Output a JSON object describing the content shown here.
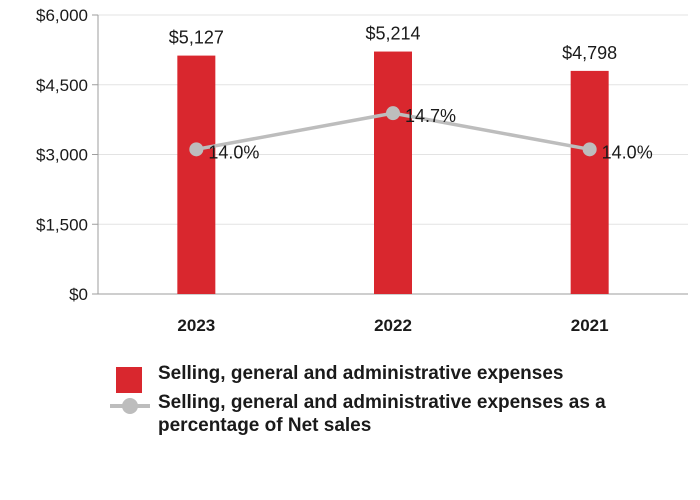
{
  "chart_data": {
    "type": "bar",
    "categories": [
      "2023",
      "2022",
      "2021"
    ],
    "series": [
      {
        "name": "Selling, general and administrative expenses",
        "type": "bar",
        "values": [
          5127,
          5214,
          4798
        ],
        "labels": [
          "$5,127",
          "$5,214",
          "$4,798"
        ],
        "color": "#d9272e"
      },
      {
        "name": "Selling, general and administrative expenses as a percentage of Net sales",
        "type": "line",
        "values": [
          14.0,
          14.7,
          14.0
        ],
        "labels": [
          "14.0%",
          "14.7%",
          "14.0%"
        ],
        "color": "#bdbdbd"
      }
    ],
    "yticks": [
      "$6,000",
      "$4,500",
      "$3,000",
      "$1,500",
      "$0"
    ],
    "ylim": [
      0,
      6000
    ],
    "secondary_ylim": [
      11.2,
      16.6
    ],
    "grid": true,
    "legend_position": "bottom"
  },
  "legend": {
    "bar_label": "Selling, general and administrative expenses",
    "line_label": "Selling, general and administrative expenses as a percentage of Net sales"
  }
}
